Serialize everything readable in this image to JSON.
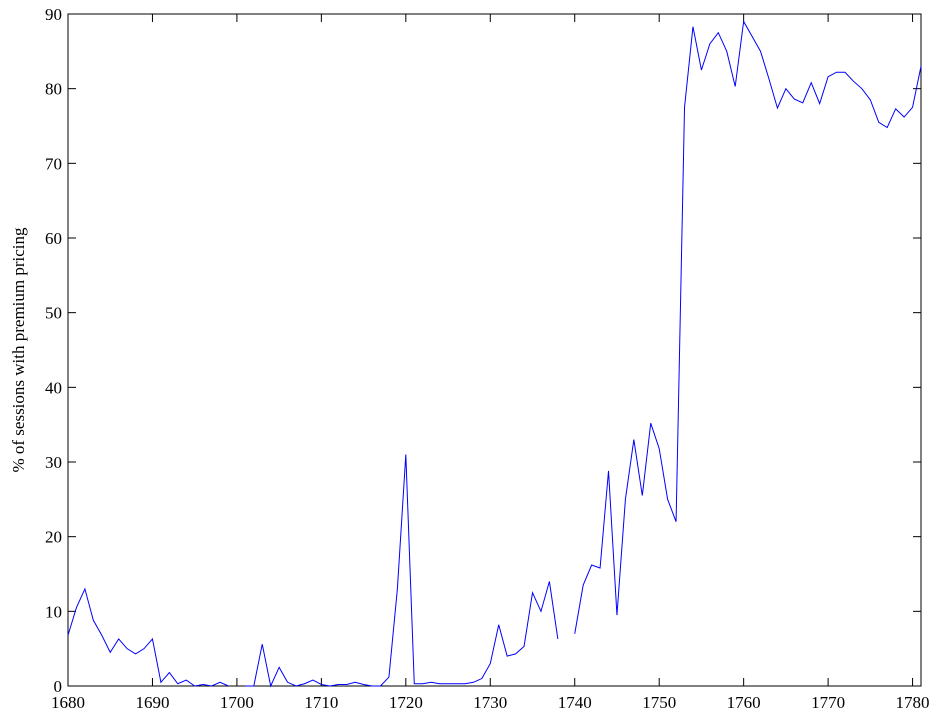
{
  "chart_data": {
    "type": "line",
    "ylabel": "% of sessions with premium pricing",
    "x": [
      1680,
      1681,
      1682,
      1683,
      1684,
      1685,
      1686,
      1687,
      1688,
      1689,
      1690,
      1691,
      1692,
      1693,
      1694,
      1695,
      1696,
      1697,
      1698,
      1699,
      1700,
      1701,
      1702,
      1703,
      1704,
      1705,
      1706,
      1707,
      1708,
      1709,
      1710,
      1711,
      1712,
      1713,
      1714,
      1715,
      1716,
      1717,
      1718,
      1719,
      1720,
      1721,
      1722,
      1723,
      1724,
      1725,
      1726,
      1727,
      1728,
      1729,
      1730,
      1731,
      1732,
      1733,
      1734,
      1735,
      1736,
      1737,
      1738,
      1739,
      1740,
      1741,
      1742,
      1743,
      1744,
      1745,
      1746,
      1747,
      1748,
      1749,
      1750,
      1751,
      1752,
      1753,
      1754,
      1755,
      1756,
      1757,
      1758,
      1759,
      1760,
      1761,
      1762,
      1763,
      1764,
      1765,
      1766,
      1767,
      1768,
      1769,
      1770,
      1771,
      1772,
      1773,
      1774,
      1775,
      1776,
      1777,
      1778,
      1779,
      1780,
      1781
    ],
    "series": [
      {
        "color": "#0000ff",
        "values": [
          6.8,
          10.5,
          13,
          8.8,
          6.8,
          4.5,
          6.3,
          5,
          4.3,
          5,
          6.3,
          0.5,
          1.8,
          0.3,
          0.8,
          0,
          0.2,
          0,
          0.5,
          0,
          null,
          0,
          0,
          5.6,
          0,
          2.5,
          0.5,
          0,
          0.3,
          0.8,
          0.2,
          0,
          0.2,
          0.2,
          0.5,
          0.2,
          0,
          0,
          1.2,
          13,
          31,
          0.3,
          0.3,
          0.5,
          0.3,
          0.3,
          0.3,
          0.3,
          0.5,
          1,
          3,
          8.2,
          4,
          4.3,
          5.3,
          12.5,
          10,
          14,
          6.3,
          null,
          7,
          13.5,
          16.2,
          15.8,
          28.8,
          9.5,
          25,
          33,
          25.5,
          35.2,
          31.8,
          25,
          22,
          77.5,
          88.3,
          82.5,
          86,
          87.5,
          85,
          80.3,
          89,
          87,
          85,
          81.3,
          77.4,
          80,
          78.6,
          78.1,
          80.8,
          78,
          81.6,
          82.2,
          82.2,
          81,
          80,
          78.5,
          75.5,
          74.8,
          77.3,
          76.2,
          77.5,
          83
        ]
      }
    ],
    "xlim": [
      1680,
      1781
    ],
    "ylim": [
      0,
      90
    ],
    "xticks": [
      1680,
      1690,
      1700,
      1710,
      1720,
      1730,
      1740,
      1750,
      1760,
      1770,
      1780
    ],
    "yticks": [
      0,
      10,
      20,
      30,
      40,
      50,
      60,
      70,
      80,
      90
    ]
  }
}
